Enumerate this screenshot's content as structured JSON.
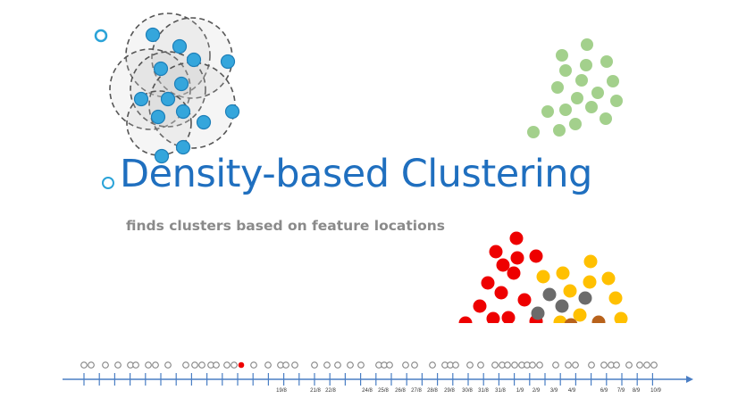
{
  "slide": {
    "title": "Density-based Clustering",
    "subtitle": "finds clusters based on feature locations"
  },
  "colors": {
    "title": "#1f6fbf",
    "subtitle": "#8a8a8a",
    "blue_points": "#35a6dc",
    "green_points": "#a3d08c",
    "red_points": "#ee0000",
    "yellow_points": "#ffc000",
    "grey_points": "#6b6b6b",
    "brown_points": "#b8621b",
    "timeline_axis": "#4a7ec4"
  },
  "timeline": {
    "date_labels": [
      "19/8",
      "21/8",
      "22/8",
      "24/8",
      "25/8",
      "26/8",
      "27/8",
      "28/8",
      "29/8",
      "30/8",
      "31/8",
      "31/8",
      "1/9",
      "2/9",
      "3/9",
      "4/9",
      "6/9",
      "7/9",
      "8/9",
      "10/9"
    ]
  }
}
